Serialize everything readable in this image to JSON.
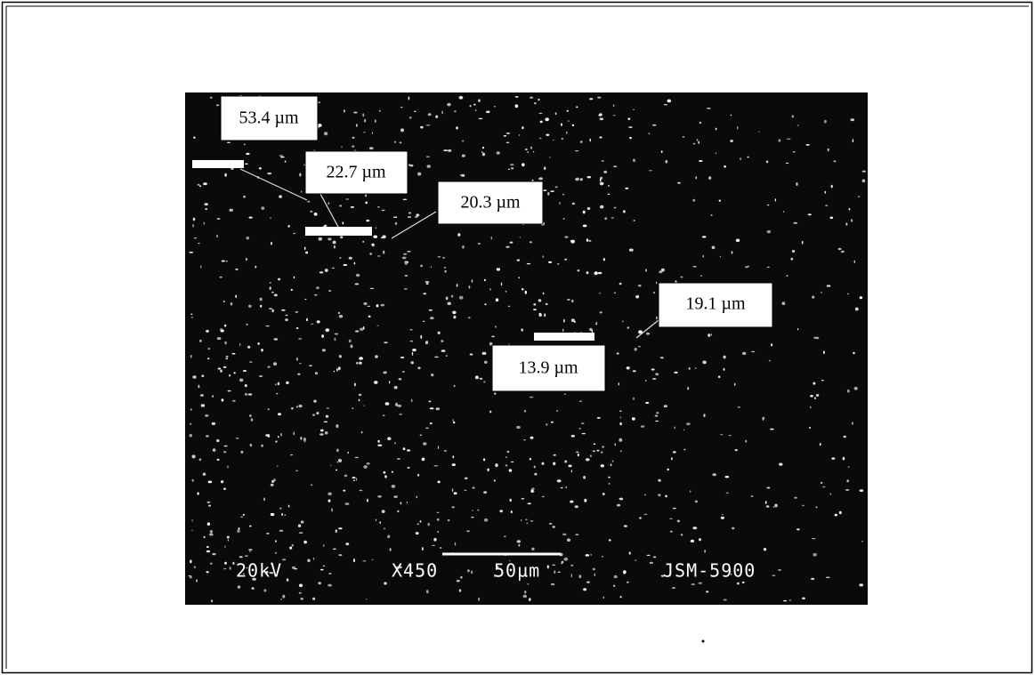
{
  "micrograph": {
    "measurements": [
      "53.4 µm",
      "22.7 µm",
      "20.3 µm",
      "19.1 µm",
      "13.9 µm"
    ],
    "footer": {
      "voltage": "20kV",
      "magnification": "X450",
      "scale": "50µm",
      "instrument": "JSM-5900"
    }
  }
}
